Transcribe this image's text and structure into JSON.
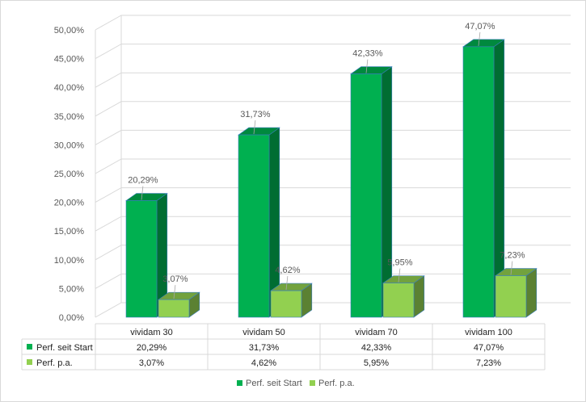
{
  "chart_data": {
    "type": "bar",
    "subtype": "3d-clustered-column-with-data-table",
    "categories": [
      "vividam 30",
      "vividam 50",
      "vividam 70",
      "vividam 100"
    ],
    "series": [
      {
        "name": "Perf. seit Start",
        "values": [
          20.29,
          31.73,
          42.33,
          47.07
        ],
        "labels": [
          "20,29%",
          "31,73%",
          "42,33%",
          "47,07%"
        ],
        "color": "#00b050"
      },
      {
        "name": "Perf. p.a.",
        "values": [
          3.07,
          4.62,
          5.95,
          7.23
        ],
        "labels": [
          "3,07%",
          "4,62%",
          "5,95%",
          "7,23%"
        ],
        "color": "#92d050"
      }
    ],
    "y_ticks": [
      "0,00%",
      "5,00%",
      "10,00%",
      "15,00%",
      "20,00%",
      "25,00%",
      "30,00%",
      "35,00%",
      "40,00%",
      "45,00%",
      "50,00%"
    ],
    "ylim": [
      0,
      50
    ],
    "y_step": 5,
    "grid": true,
    "legend_position": "bottom",
    "data_table": true,
    "title": "",
    "xlabel": "",
    "ylabel": ""
  }
}
